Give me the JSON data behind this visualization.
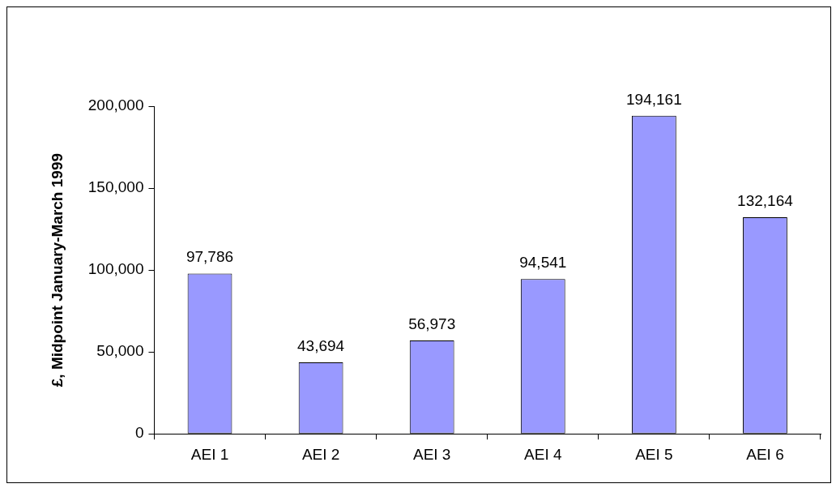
{
  "chart_data": {
    "type": "bar",
    "ylabel": "£, Midpoint January-March 1999",
    "categories": [
      "AEI 1",
      "AEI 2",
      "AEI 3",
      "AEI 4",
      "AEI 5",
      "AEI 6"
    ],
    "values": [
      97786,
      43694,
      56973,
      94541,
      194161,
      132164
    ],
    "color": "#9999ff",
    "ylim": [
      0,
      200000
    ],
    "yticks": [
      0,
      {
        "value": 50000,
        "label": "50,000"
      },
      {
        "value": 100000,
        "label": "100,000"
      },
      {
        "value": 150000,
        "label": "150,000"
      },
      {
        "value": 200000,
        "label": "200,000"
      }
    ],
    "value_labels": [
      "97,786",
      "43,694",
      "56,973",
      "94,541",
      "194,161",
      "132,164"
    ]
  }
}
